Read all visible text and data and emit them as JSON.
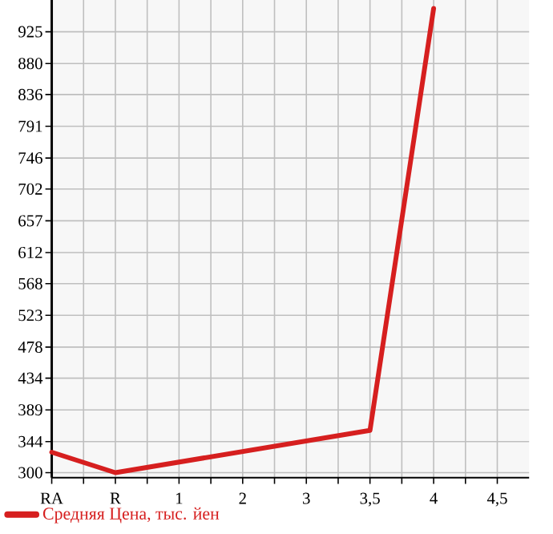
{
  "chart_data": {
    "type": "line",
    "categories": [
      "RA",
      "R",
      "1",
      "2",
      "3",
      "3,5",
      "4",
      "4,5"
    ],
    "series": [
      {
        "name": "Средняя Цена, тыс. йен",
        "color": "#d61f1f",
        "values": [
          329,
          300,
          null,
          null,
          null,
          360,
          958,
          null
        ]
      }
    ],
    "ylim": [
      293,
      970
    ],
    "yticks": [
      300,
      344,
      389,
      434,
      478,
      523,
      568,
      612,
      657,
      702,
      746,
      791,
      836,
      880,
      925
    ],
    "grid": true,
    "legend": "bottom left",
    "marker": "none",
    "line_style": "solid"
  }
}
